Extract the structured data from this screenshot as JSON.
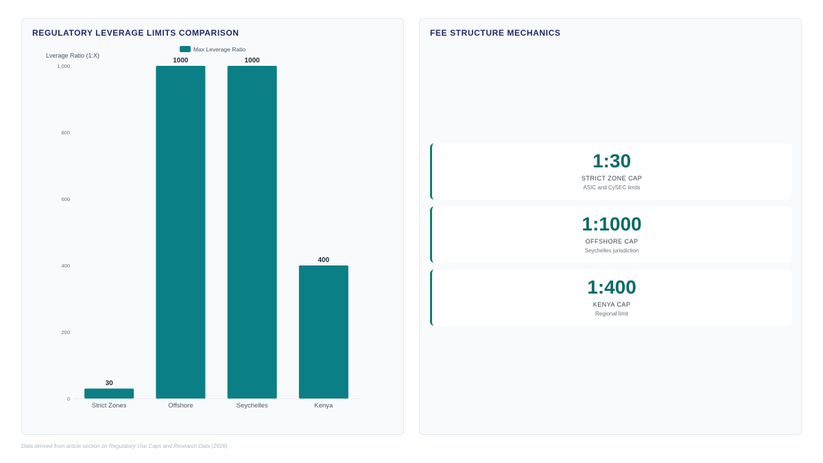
{
  "left_panel": {
    "title": "REGULATORY LEVERAGE LIMITS COMPARISON"
  },
  "right_panel": {
    "title": "FEE STRUCTURE MECHANICS",
    "cards": [
      {
        "value": "1:30",
        "label": "STRICT ZONE CAP",
        "desc": "ASIC and CySEC limits"
      },
      {
        "value": "1:1000",
        "label": "OFFSHORE CAP",
        "desc": "Seychelles jurisdiction"
      },
      {
        "value": "1:400",
        "label": "KENYA CAP",
        "desc": "Regional limit"
      }
    ]
  },
  "footer": {
    "note": "Data derived from article section on Regulatory Use Caps and Research Data (2026)"
  },
  "colors": {
    "bar": "#0a7f86",
    "accent": "#0f7b74",
    "title": "#1f2a63"
  },
  "chart_data": {
    "type": "bar",
    "categories": [
      "Strict Zones",
      "Offshore",
      "Seychelles",
      "Kenya"
    ],
    "series": [
      {
        "name": "Max Leverage Ratio",
        "values": [
          30,
          1000,
          1000,
          400
        ]
      }
    ],
    "data_labels": [
      "30",
      "1000",
      "1000",
      "400"
    ],
    "ylabel": "Lverage Ratio (1:X)",
    "ylim": [
      0,
      1000
    ],
    "yticks": [
      0,
      200,
      400,
      600,
      800,
      1000
    ],
    "ytick_labels": [
      "0",
      "200",
      "400",
      "600",
      "800",
      "1,000"
    ],
    "legend_position": "top-center",
    "grid": false
  }
}
